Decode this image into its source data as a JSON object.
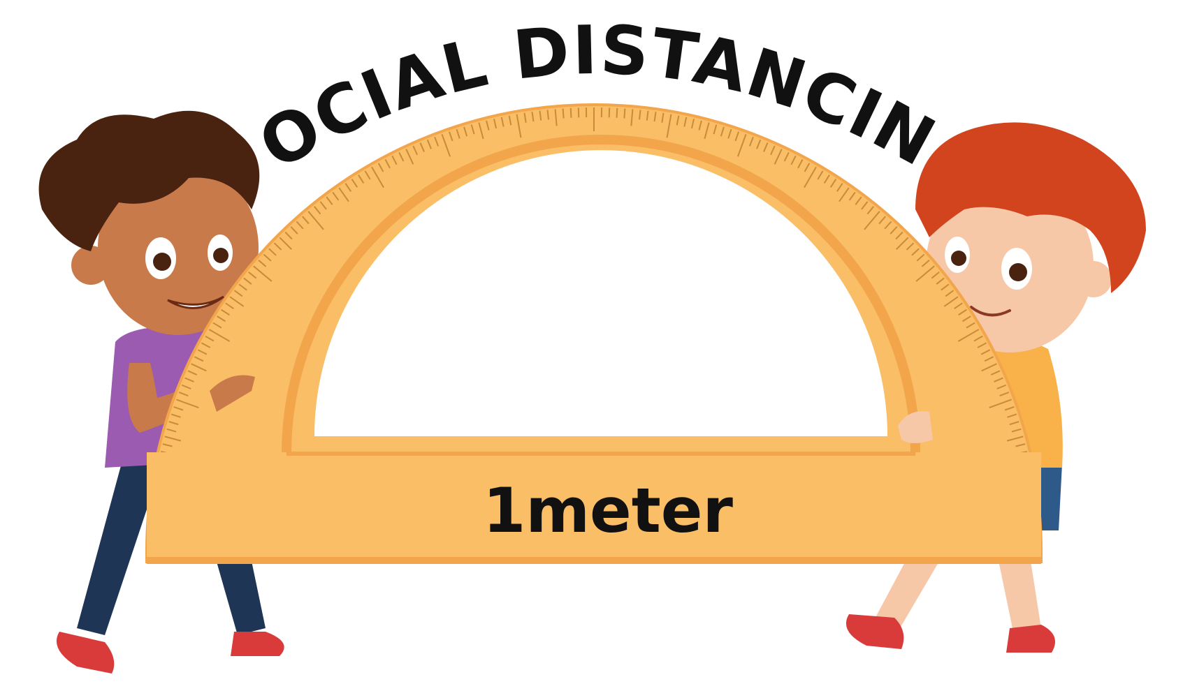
{
  "title": "SOCIAL DISTANCING",
  "ruler_label": "1meter",
  "colors": {
    "protractor": "#F9BE66",
    "protractor_edge": "#F2A54A",
    "text": "#111111",
    "boy_left_skin": "#C97A4A",
    "boy_left_hair": "#4A2210",
    "boy_left_shirt": "#9A5BB1",
    "boy_right_skin": "#F7C8A8",
    "boy_right_hair": "#D2441E",
    "boy_right_shirt": "#F9B24A",
    "pants": "#1F3556",
    "shoes": "#D93B3B"
  }
}
